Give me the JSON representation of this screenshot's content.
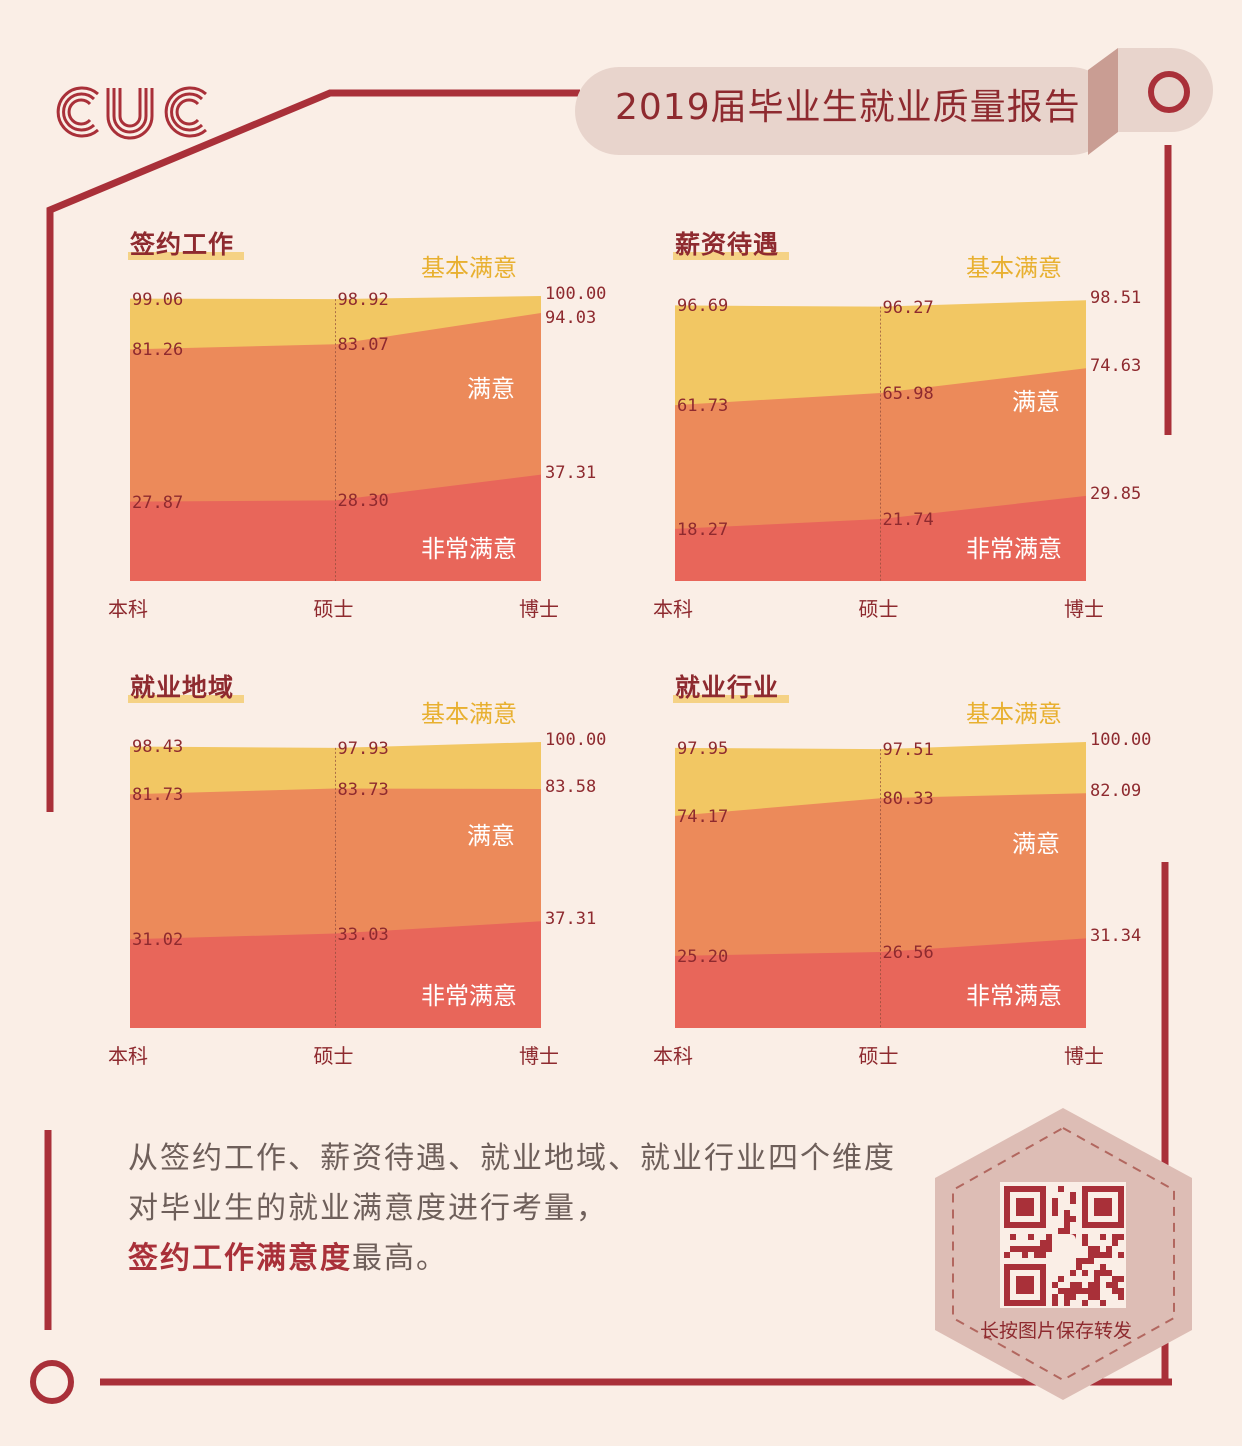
{
  "header": {
    "logo": "CUC",
    "title": "2019届毕业生就业质量报告"
  },
  "colors": {
    "frame": "#a93039",
    "very_satisfied": "#e8665a",
    "satisfied": "#ec8a5a",
    "basically_satisfied": "#f2c763",
    "title_pill": "#e8d4cc",
    "background": "#faeee6"
  },
  "icons": {
    "header_ring": "ring-icon",
    "footer_ring": "ring-icon",
    "qr": "qr-code-icon"
  },
  "chart_data": [
    {
      "type": "area",
      "title": "签约工作",
      "categories": [
        "本科",
        "硕士",
        "博士"
      ],
      "series": [
        {
          "name": "非常满意",
          "values": [
            27.87,
            28.3,
            37.31
          ]
        },
        {
          "name": "满意",
          "values": [
            81.26,
            83.07,
            94.03
          ]
        },
        {
          "name": "基本满意",
          "values": [
            99.06,
            98.92,
            100.0
          ]
        }
      ],
      "value_labels": {
        "非常满意": [
          "27.87",
          "28.30",
          "37.31"
        ],
        "满意": [
          "81.26",
          "83.07",
          "94.03"
        ],
        "基本满意": [
          "99.06",
          "98.92",
          "100.00"
        ]
      },
      "ylim": [
        0,
        100
      ]
    },
    {
      "type": "area",
      "title": "薪资待遇",
      "categories": [
        "本科",
        "硕士",
        "博士"
      ],
      "series": [
        {
          "name": "非常满意",
          "values": [
            18.27,
            21.74,
            29.85
          ]
        },
        {
          "name": "满意",
          "values": [
            61.73,
            65.98,
            74.63
          ]
        },
        {
          "name": "基本满意",
          "values": [
            96.69,
            96.27,
            98.51
          ]
        }
      ],
      "value_labels": {
        "非常满意": [
          "18.27",
          "21.74",
          "29.85"
        ],
        "满意": [
          "61.73",
          "65.98",
          "74.63"
        ],
        "基本满意": [
          "96.69",
          "96.27",
          "98.51"
        ]
      },
      "ylim": [
        0,
        100
      ]
    },
    {
      "type": "area",
      "title": "就业地域",
      "categories": [
        "本科",
        "硕士",
        "博士"
      ],
      "series": [
        {
          "name": "非常满意",
          "values": [
            31.02,
            33.03,
            37.31
          ]
        },
        {
          "name": "满意",
          "values": [
            81.73,
            83.73,
            83.58
          ]
        },
        {
          "name": "基本满意",
          "values": [
            98.43,
            97.93,
            100.0
          ]
        }
      ],
      "value_labels": {
        "非常满意": [
          "31.02",
          "33.03",
          "37.31"
        ],
        "满意": [
          "81.73",
          "83.73",
          "83.58"
        ],
        "基本满意": [
          "98.43",
          "97.93",
          "100.00"
        ]
      },
      "ylim": [
        0,
        100
      ]
    },
    {
      "type": "area",
      "title": "就业行业",
      "categories": [
        "本科",
        "硕士",
        "博士"
      ],
      "series": [
        {
          "name": "非常满意",
          "values": [
            25.2,
            26.56,
            31.34
          ]
        },
        {
          "name": "满意",
          "values": [
            74.17,
            80.33,
            82.09
          ]
        },
        {
          "name": "基本满意",
          "values": [
            97.95,
            97.51,
            100.0
          ]
        }
      ],
      "value_labels": {
        "非常满意": [
          "25.20",
          "26.56",
          "31.34"
        ],
        "满意": [
          "74.17",
          "80.33",
          "82.09"
        ],
        "基本满意": [
          "97.95",
          "97.51",
          "100.00"
        ]
      },
      "ylim": [
        0,
        100
      ]
    }
  ],
  "summary": {
    "line1": "从签约工作、薪资待遇、就业地域、就业行业四个维度",
    "line2": "对毕业生的就业满意度进行考量，",
    "highlight": "签约工作满意度",
    "tail": "最高。"
  },
  "qr": {
    "caption": "长按图片保存转发"
  }
}
